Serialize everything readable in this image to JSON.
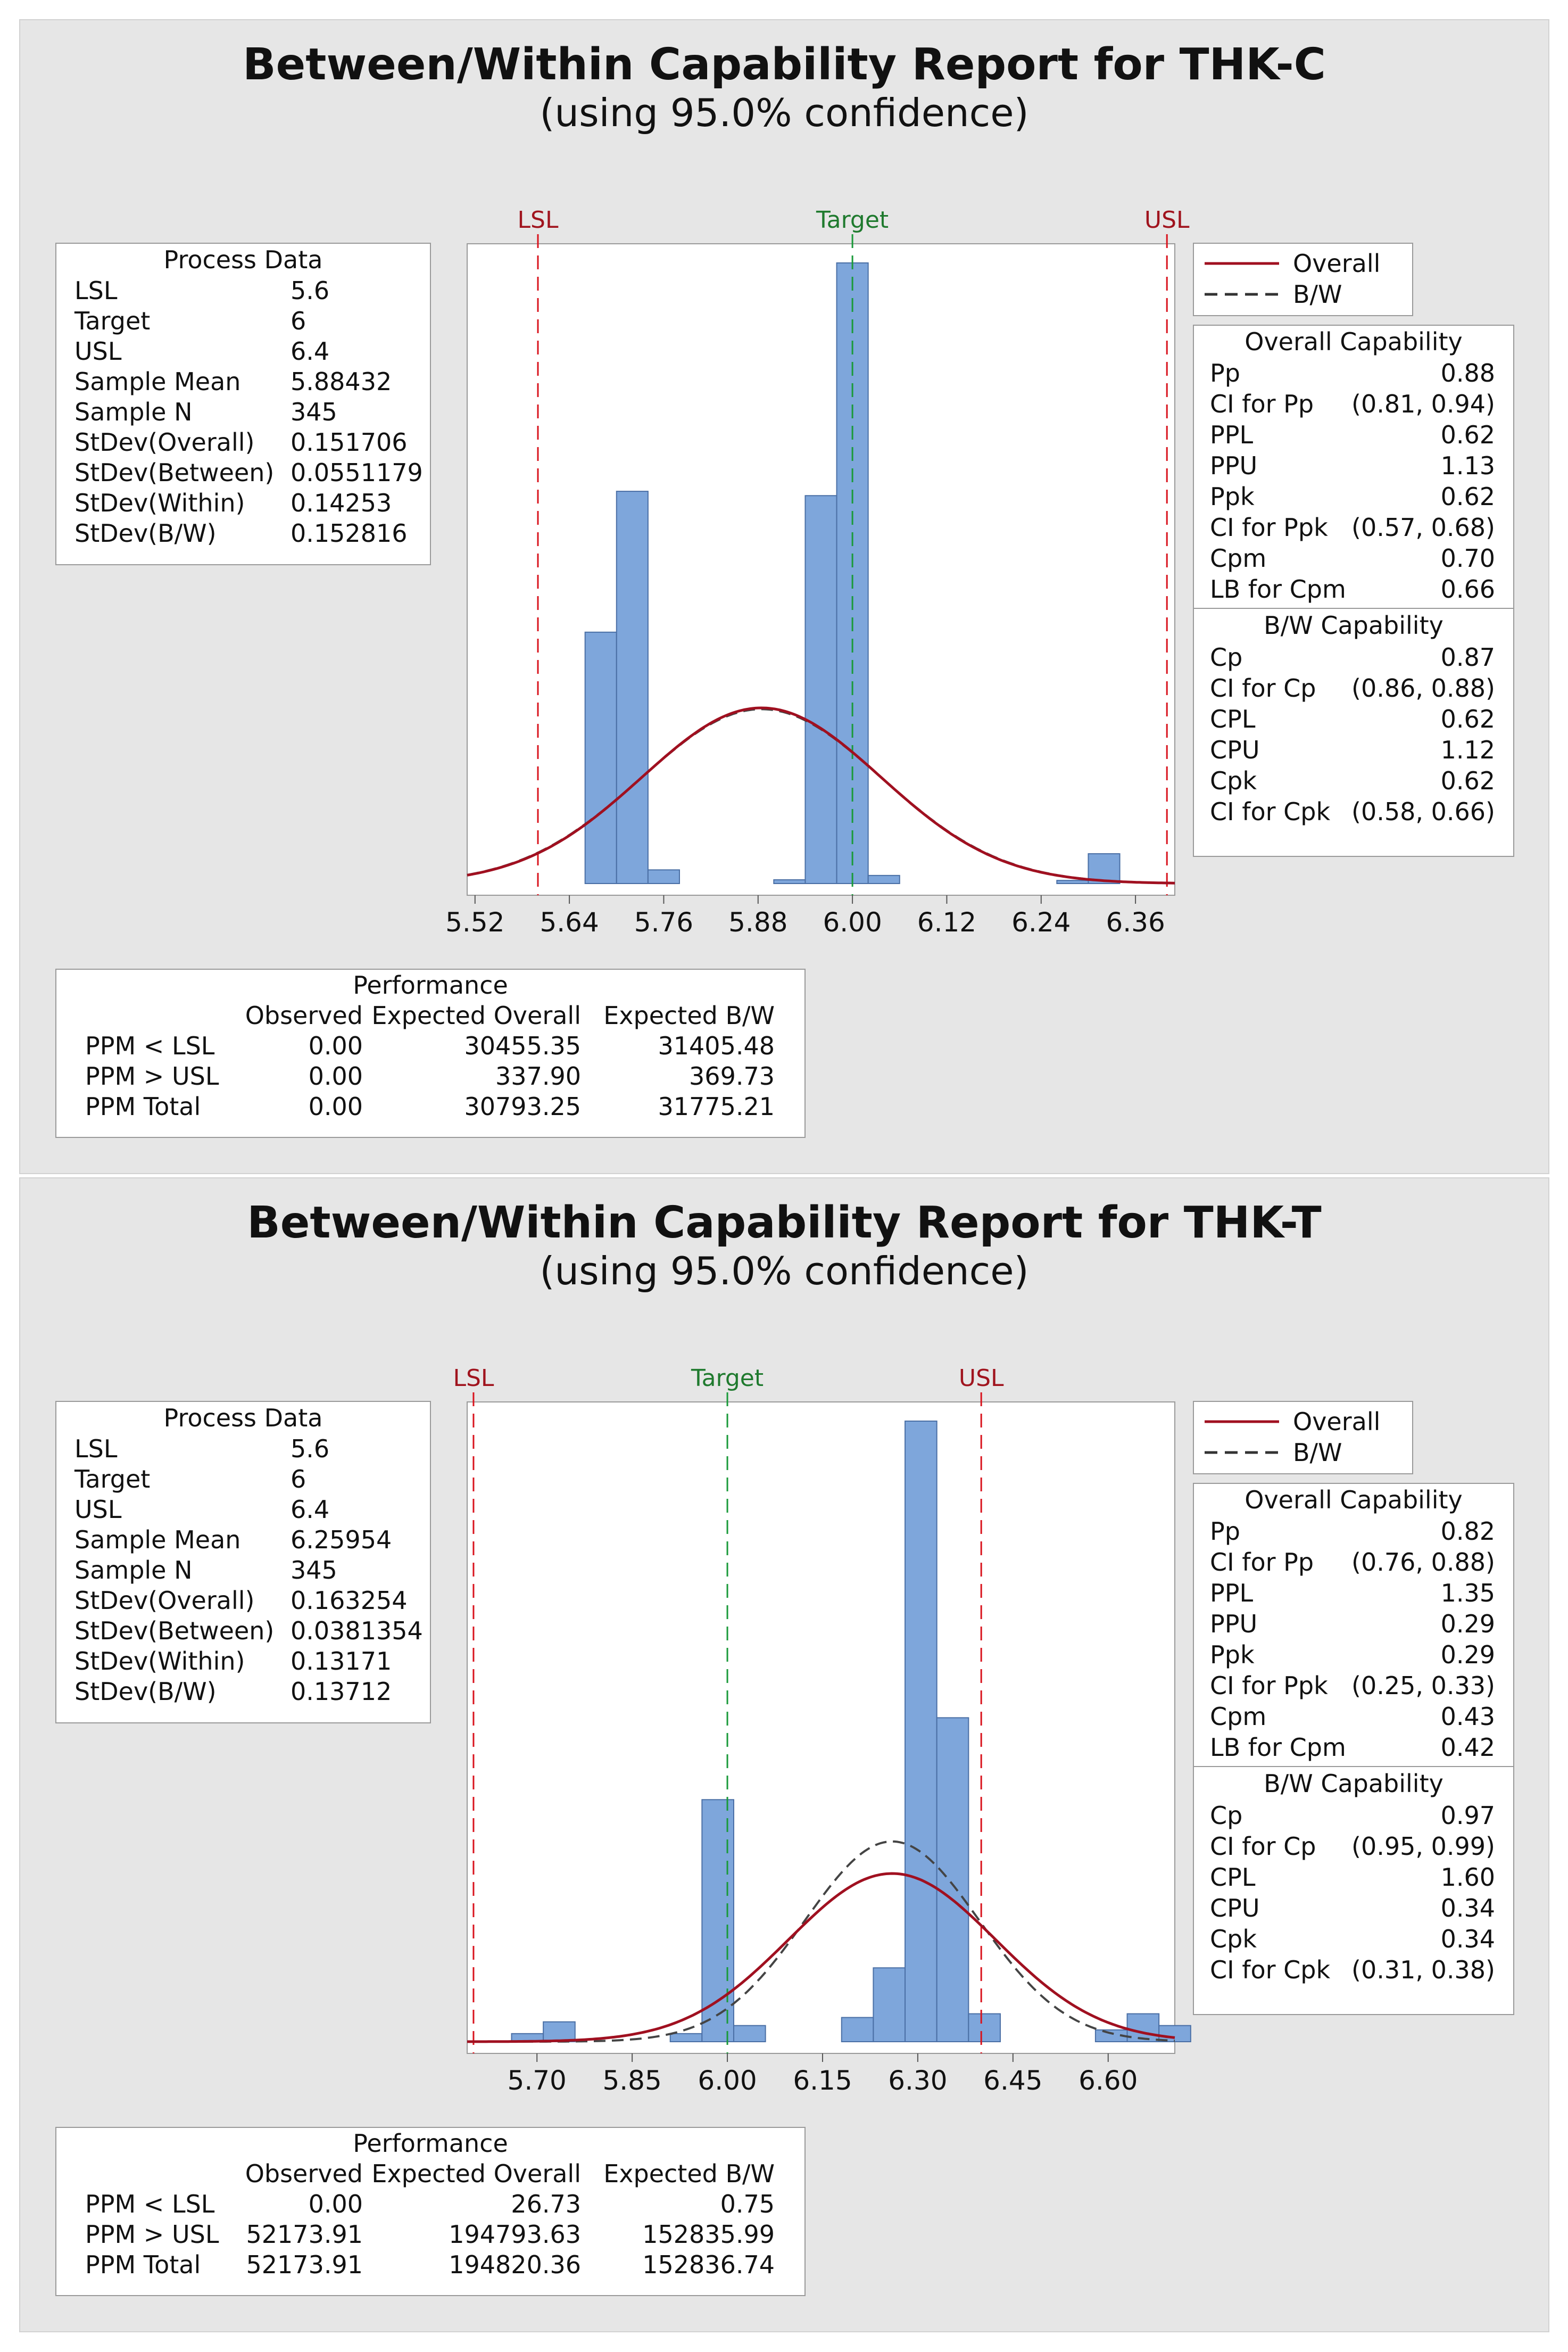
{
  "colors": {
    "bar_fill": "#7ea6db",
    "bar_stroke": "#4a6fa5",
    "spec_line": "#d9141e",
    "target_line": "#1a9a3a",
    "spec_label": "#a0141e",
    "target_label": "#1f7a2e",
    "overall_curve": "#a01020",
    "bw_curve": "#444444",
    "panel_bg": "#e6e6e6"
  },
  "legend": {
    "overall": "Overall",
    "bw": "B/W"
  },
  "process_labels": {
    "title": "Process Data",
    "lsl": "LSL",
    "target": "Target",
    "usl": "USL",
    "sample_mean": "Sample Mean",
    "sample_n": "Sample N",
    "stdev_overall": "StDev(Overall)",
    "stdev_between": "StDev(Between)",
    "stdev_within": "StDev(Within)",
    "stdev_bw": "StDev(B/W)"
  },
  "overall_labels": {
    "title": "Overall Capability",
    "pp": "Pp",
    "ci_pp": "CI for Pp",
    "ppl": "PPL",
    "ppu": "PPU",
    "ppk": "Ppk",
    "ci_ppk": "CI for Ppk",
    "cpm": "Cpm",
    "lb_cpm": "LB for Cpm"
  },
  "bw_labels": {
    "title": "B/W Capability",
    "cp": "Cp",
    "ci_cp": "CI for Cp",
    "cpl": "CPL",
    "cpu": "CPU",
    "cpk": "Cpk",
    "ci_cpk": "CI for Cpk"
  },
  "perf_labels": {
    "title": "Performance",
    "observed": "Observed",
    "expected_overall": "Expected Overall",
    "expected_bw": "Expected B/W",
    "ppm_lt_lsl": "PPM < LSL",
    "ppm_gt_usl": "PPM > USL",
    "ppm_total": "PPM Total"
  },
  "reports": [
    {
      "title": "Between/Within Capability Report for THK-C",
      "subtitle": "(using 95.0% confidence)",
      "process": {
        "lsl": "5.6",
        "target": "6",
        "usl": "6.4",
        "sample_mean": "5.88432",
        "sample_n": "345",
        "stdev_overall": "0.151706",
        "stdev_between": "0.0551179",
        "stdev_within": "0.14253",
        "stdev_bw": "0.152816"
      },
      "overall": {
        "pp": "0.88",
        "ci_pp": "(0.81, 0.94)",
        "ppl": "0.62",
        "ppu": "1.13",
        "ppk": "0.62",
        "ci_ppk": "(0.57, 0.68)",
        "cpm": "0.70",
        "lb_cpm": "0.66"
      },
      "bw": {
        "cp": "0.87",
        "ci_cp": "(0.86, 0.88)",
        "cpl": "0.62",
        "cpu": "1.12",
        "cpk": "0.62",
        "ci_cpk": "(0.58, 0.66)"
      },
      "performance": {
        "lt_lsl": {
          "observed": "0.00",
          "exp_overall": "30455.35",
          "exp_bw": "31405.48"
        },
        "gt_usl": {
          "observed": "0.00",
          "exp_overall": "337.90",
          "exp_bw": "369.73"
        },
        "total": {
          "observed": "0.00",
          "exp_overall": "30793.25",
          "exp_bw": "31775.21"
        }
      }
    },
    {
      "title": "Between/Within Capability Report for THK-T",
      "subtitle": "(using 95.0% confidence)",
      "process": {
        "lsl": "5.6",
        "target": "6",
        "usl": "6.4",
        "sample_mean": "6.25954",
        "sample_n": "345",
        "stdev_overall": "0.163254",
        "stdev_between": "0.0381354",
        "stdev_within": "0.13171",
        "stdev_bw": "0.13712"
      },
      "overall": {
        "pp": "0.82",
        "ci_pp": "(0.76, 0.88)",
        "ppl": "1.35",
        "ppu": "0.29",
        "ppk": "0.29",
        "ci_ppk": "(0.25, 0.33)",
        "cpm": "0.43",
        "lb_cpm": "0.42"
      },
      "bw": {
        "cp": "0.97",
        "ci_cp": "(0.95, 0.99)",
        "cpl": "1.60",
        "cpu": "0.34",
        "cpk": "0.34",
        "ci_cpk": "(0.31, 0.38)"
      },
      "performance": {
        "lt_lsl": {
          "observed": "0.00",
          "exp_overall": "26.73",
          "exp_bw": "0.75"
        },
        "gt_usl": {
          "observed": "52173.91",
          "exp_overall": "194793.63",
          "exp_bw": "152835.99"
        },
        "total": {
          "observed": "52173.91",
          "exp_overall": "194820.36",
          "exp_bw": "152836.74"
        }
      }
    }
  ],
  "chart_data": [
    {
      "type": "histogram",
      "title": "Between/Within Capability Report for THK-C",
      "xlim": [
        5.51,
        6.41
      ],
      "ylim": [
        0,
        1.0
      ],
      "x_ticks": [
        5.52,
        5.64,
        5.76,
        5.88,
        6.0,
        6.12,
        6.24,
        6.36
      ],
      "x_tick_labels": [
        "5.52",
        "5.64",
        "5.76",
        "5.88",
        "6.00",
        "6.12",
        "6.24",
        "6.36"
      ],
      "bin_width": 0.04,
      "bins": [
        {
          "start": 5.66,
          "height": 0.405
        },
        {
          "start": 5.7,
          "height": 0.632
        },
        {
          "start": 5.74,
          "height": 0.022
        },
        {
          "start": 5.9,
          "height": 0.006
        },
        {
          "start": 5.94,
          "height": 0.625
        },
        {
          "start": 5.98,
          "height": 1.0
        },
        {
          "start": 6.02,
          "height": 0.013
        },
        {
          "start": 6.26,
          "height": 0.005
        },
        {
          "start": 6.3,
          "height": 0.048
        }
      ],
      "spec_lines": [
        {
          "name": "LSL",
          "value": 5.6
        },
        {
          "name": "Target",
          "value": 6.0
        },
        {
          "name": "USL",
          "value": 6.4
        }
      ],
      "curves": {
        "overall": {
          "mean": 5.88432,
          "sd": 0.151706
        },
        "bw": {
          "mean": 5.88432,
          "sd": 0.152816
        },
        "peak_height": 0.283
      }
    },
    {
      "type": "histogram",
      "title": "Between/Within Capability Report for THK-T",
      "xlim": [
        5.59,
        6.705
      ],
      "ylim": [
        0,
        1.0
      ],
      "x_ticks": [
        5.7,
        5.85,
        6.0,
        6.15,
        6.3,
        6.45,
        6.6
      ],
      "x_tick_labels": [
        "5.70",
        "5.85",
        "6.00",
        "6.15",
        "6.30",
        "6.45",
        "6.60"
      ],
      "bin_width": 0.05,
      "bins": [
        {
          "start": 5.66,
          "height": 0.013
        },
        {
          "start": 5.71,
          "height": 0.032
        },
        {
          "start": 5.91,
          "height": 0.013
        },
        {
          "start": 5.96,
          "height": 0.39
        },
        {
          "start": 6.01,
          "height": 0.026
        },
        {
          "start": 6.18,
          "height": 0.039
        },
        {
          "start": 6.23,
          "height": 0.119
        },
        {
          "start": 6.28,
          "height": 1.0
        },
        {
          "start": 6.33,
          "height": 0.522
        },
        {
          "start": 6.38,
          "height": 0.045
        },
        {
          "start": 6.58,
          "height": 0.019
        },
        {
          "start": 6.63,
          "height": 0.045
        },
        {
          "start": 6.68,
          "height": 0.026
        }
      ],
      "spec_lines": [
        {
          "name": "LSL",
          "value": 5.6
        },
        {
          "name": "Target",
          "value": 6.0
        },
        {
          "name": "USL",
          "value": 6.4
        }
      ],
      "curves": {
        "overall": {
          "mean": 6.25954,
          "sd": 0.163254
        },
        "bw": {
          "mean": 6.25954,
          "sd": 0.13712
        },
        "peak_height": 0.271
      }
    }
  ]
}
